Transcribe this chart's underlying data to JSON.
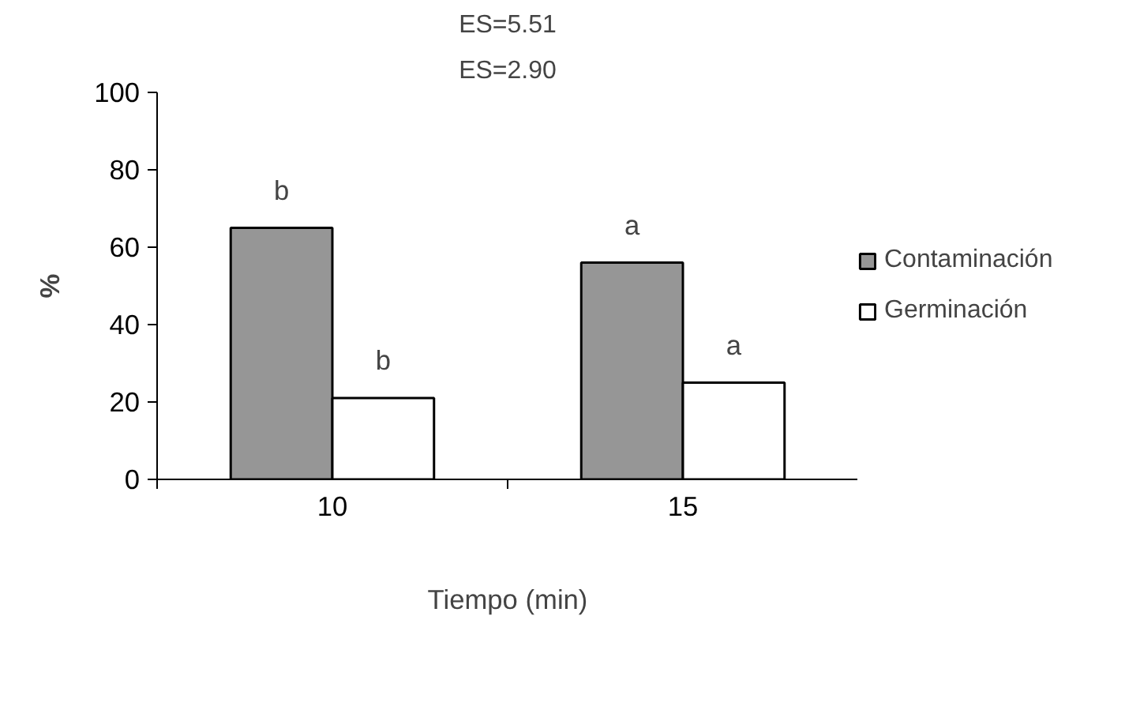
{
  "chart_data": {
    "type": "bar",
    "xlabel": "Tiempo (min)",
    "ylabel": "%",
    "categories": [
      "10",
      "15"
    ],
    "series": [
      {
        "name": "Contaminación",
        "color": "#969696",
        "values": [
          65,
          56
        ]
      },
      {
        "name": "Germinación",
        "color": "#ffffff",
        "values": [
          21,
          25
        ]
      }
    ],
    "ylim": [
      0,
      100
    ],
    "yticks": [
      0,
      20,
      40,
      60,
      80,
      100
    ],
    "grid": false,
    "legend": "right",
    "annotations": [
      "ES=5.51",
      "ES=2.90",
      {
        "text": "b",
        "x": "10",
        "y": 65
      },
      {
        "text": "b",
        "x": "10",
        "y": 21
      },
      {
        "text": "a",
        "x": "15",
        "y": 56
      },
      {
        "text": "a",
        "x": "15",
        "y": 25
      }
    ]
  }
}
